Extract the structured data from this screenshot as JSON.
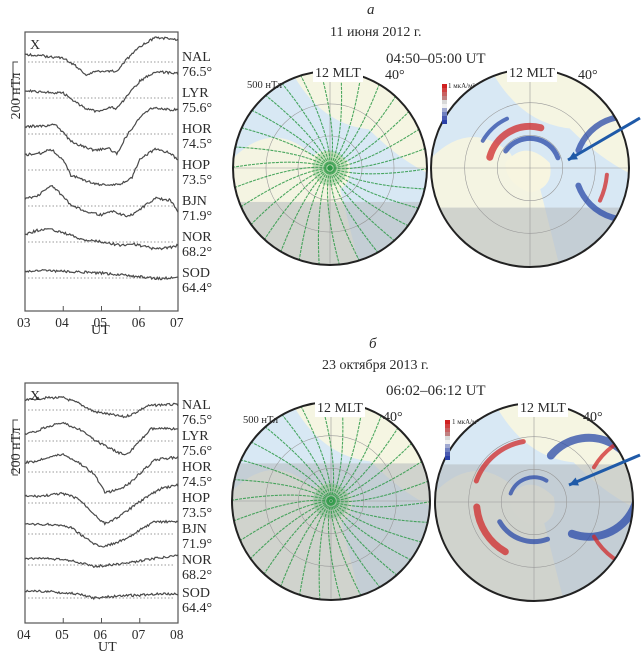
{
  "chart_data": [
    {
      "type": "line",
      "panel": "a",
      "title": "X",
      "xlabel": "UT",
      "x_ticks": [
        "03",
        "04",
        "05",
        "06",
        "07"
      ],
      "xlim": [
        3,
        7
      ],
      "scale_bar_label": "200 нТл",
      "scale_bar_value_nT": 200,
      "series": [
        {
          "name": "NAL",
          "lat": "76.5°",
          "x": [
            3,
            3.5,
            4,
            4.3,
            4.6,
            4.9,
            5.2,
            5.4,
            5.6,
            6.0,
            6.4,
            6.8,
            7.0
          ],
          "y": [
            20,
            10,
            0,
            -40,
            -90,
            -70,
            -70,
            -70,
            -20,
            60,
            110,
            105,
            100
          ]
        },
        {
          "name": "LYR",
          "lat": "75.6°",
          "x": [
            3,
            3.5,
            4,
            4.3,
            4.6,
            4.9,
            5.2,
            5.4,
            5.6,
            6.0,
            6.4,
            6.8,
            7.0
          ],
          "y": [
            20,
            10,
            5,
            -40,
            -80,
            -95,
            -70,
            -80,
            -30,
            70,
            120,
            115,
            110
          ]
        },
        {
          "name": "HOR",
          "lat": "74.5°",
          "x": [
            3,
            3.5,
            3.8,
            4.2,
            4.4,
            4.8,
            5.2,
            5.4,
            5.6,
            6.0,
            6.3,
            6.8,
            7.0
          ],
          "y": [
            20,
            20,
            30,
            -60,
            -80,
            -110,
            -100,
            -130,
            -50,
            70,
            120,
            110,
            110
          ]
        },
        {
          "name": "HOP",
          "lat": "73.5°",
          "x": [
            3,
            3.4,
            3.7,
            4.0,
            4.2,
            4.6,
            4.9,
            5.2,
            5.5,
            5.8,
            6.0,
            6.4,
            6.8,
            7.0
          ],
          "y": [
            60,
            70,
            90,
            30,
            -50,
            -80,
            -100,
            -100,
            -100,
            -60,
            40,
            90,
            70,
            30
          ]
        },
        {
          "name": "BJN",
          "lat": "71.9°",
          "x": [
            3,
            3.3,
            3.7,
            4.0,
            4.2,
            4.6,
            5.0,
            5.3,
            5.7,
            6.0,
            6.4,
            6.8,
            7.0
          ],
          "y": [
            20,
            30,
            90,
            30,
            -20,
            -50,
            -70,
            -50,
            -80,
            -40,
            20,
            10,
            -50
          ]
        },
        {
          "name": "NOR",
          "lat": "68.2°",
          "x": [
            3,
            3.3,
            3.6,
            4.0,
            4.5,
            5.0,
            5.5,
            5.8,
            6.0,
            6.4,
            6.8,
            7.0
          ],
          "y": [
            20,
            40,
            50,
            30,
            -10,
            -20,
            -40,
            -30,
            -40,
            -60,
            -50,
            -40
          ]
        },
        {
          "name": "SOD",
          "lat": "64.4°",
          "x": [
            3,
            3.5,
            4,
            4.5,
            5,
            5.5,
            6,
            6.5,
            7.0
          ],
          "y": [
            15,
            20,
            15,
            10,
            5,
            -5,
            -15,
            -25,
            -20
          ]
        }
      ]
    },
    {
      "type": "line",
      "panel": "б",
      "title": "X",
      "xlabel": "UT",
      "x_ticks": [
        "04",
        "05",
        "06",
        "07",
        "08"
      ],
      "xlim": [
        4,
        8
      ],
      "scale_bar_label": "200 нТл",
      "scale_bar_value_nT": 200,
      "series": [
        {
          "name": "NAL",
          "lat": "76.5°",
          "x": [
            4,
            4.2,
            4.6,
            5.0,
            5.4,
            5.8,
            6.2,
            6.6,
            6.8,
            7.2,
            7.6,
            8.0
          ],
          "y": [
            20,
            25,
            30,
            30,
            10,
            -20,
            -30,
            -40,
            -30,
            0,
            5,
            5
          ]
        },
        {
          "name": "LYR",
          "lat": "75.6°",
          "x": [
            4,
            4.3,
            4.6,
            5.0,
            5.4,
            5.8,
            6.2,
            6.5,
            6.7,
            6.9,
            7.3,
            7.6,
            8.0
          ],
          "y": [
            10,
            20,
            40,
            50,
            30,
            -10,
            -40,
            -60,
            -60,
            -30,
            30,
            30,
            30
          ]
        },
        {
          "name": "HOR",
          "lat": "74.5°",
          "x": [
            4,
            4.3,
            4.6,
            5.0,
            5.4,
            5.8,
            6.1,
            6.4,
            6.7,
            7.0,
            7.4,
            8.0
          ],
          "y": [
            20,
            25,
            40,
            50,
            20,
            -20,
            -90,
            -80,
            -60,
            -20,
            30,
            40
          ]
        },
        {
          "name": "HOP",
          "lat": "73.5°",
          "x": [
            4,
            4.4,
            5.0,
            5.4,
            5.7,
            6.0,
            6.1,
            6.5,
            6.8,
            7.2,
            7.6,
            8.0
          ],
          "y": [
            10,
            10,
            20,
            0,
            -40,
            -80,
            -90,
            -60,
            -30,
            10,
            40,
            50
          ]
        },
        {
          "name": "BJN",
          "lat": "71.9°",
          "x": [
            4,
            4.4,
            4.8,
            5.2,
            5.5,
            5.8,
            6.0,
            6.3,
            6.7,
            7.0,
            7.4,
            8.0
          ],
          "y": [
            20,
            20,
            20,
            10,
            -20,
            -50,
            -60,
            -50,
            -30,
            0,
            30,
            30
          ]
        },
        {
          "name": "NOR",
          "lat": "68.2°",
          "x": [
            4,
            4.5,
            5.0,
            5.4,
            5.8,
            6.2,
            6.6,
            7.0,
            7.4,
            8.0
          ],
          "y": [
            10,
            10,
            5,
            -5,
            -20,
            -15,
            -10,
            0,
            10,
            20
          ]
        },
        {
          "name": "SOD",
          "lat": "64.4°",
          "x": [
            4,
            4.5,
            5.0,
            5.4,
            5.8,
            6.2,
            6.6,
            7.0,
            7.4,
            8.0
          ],
          "y": [
            10,
            10,
            5,
            0,
            -15,
            -10,
            -5,
            -5,
            0,
            0
          ]
        }
      ]
    }
  ],
  "panels": [
    {
      "letter": "а",
      "date": "11 июня 2012 г.",
      "time": "04:50–05:00 UT",
      "maps": {
        "mlt_label": "12 MLT",
        "lat_label": "40°",
        "vector_scale": "500 нТл",
        "current_scale": "1 мкА/м²"
      }
    },
    {
      "letter": "б",
      "date": "23 октября 2013 г.",
      "time": "06:02–06:12 UT",
      "maps": {
        "mlt_label": "12 MLT",
        "lat_label": "40°",
        "vector_scale": "500 нТл",
        "current_scale": "1 мкА/м²"
      }
    }
  ],
  "colors": {
    "trace": "#4a4a4a",
    "vector": "#2e9a48",
    "ocean": "#d8e8f4",
    "land_day": "#f7f5e0",
    "night_shade": "#b8bcc0",
    "current_up": "#d02a2a",
    "current_down": "#2a4aa8",
    "arrow": "#1f5aa8"
  }
}
